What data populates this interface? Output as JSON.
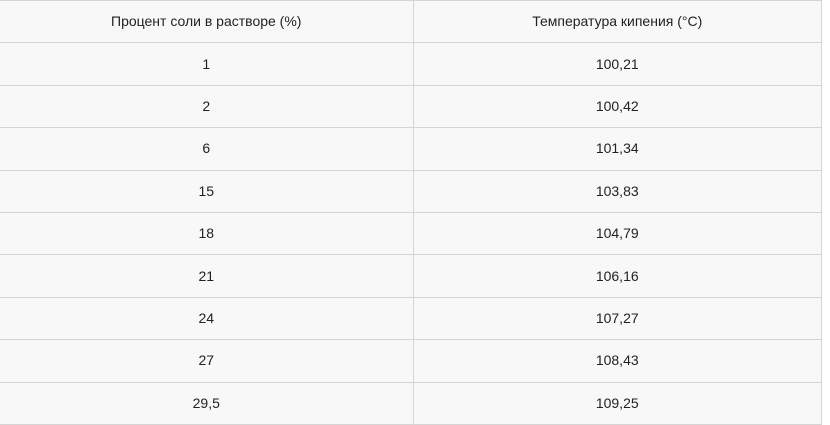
{
  "chart_data": {
    "type": "table",
    "title": "",
    "columns": [
      "Процент соли в растворе (%)",
      "Температура кипения (°C)"
    ],
    "rows": [
      [
        "1",
        "100,21"
      ],
      [
        "2",
        "100,42"
      ],
      [
        "6",
        "101,34"
      ],
      [
        "15",
        "103,83"
      ],
      [
        "18",
        "104,79"
      ],
      [
        "21",
        "106,16"
      ],
      [
        "24",
        "107,27"
      ],
      [
        "27",
        "108,43"
      ],
      [
        "29,5",
        "109,25"
      ]
    ],
    "x_numeric": [
      1,
      2,
      6,
      15,
      18,
      21,
      24,
      27,
      29.5
    ],
    "y_numeric": [
      100.21,
      100.42,
      101.34,
      103.83,
      104.79,
      106.16,
      107.27,
      108.43,
      109.25
    ]
  },
  "colors": {
    "cell_background": "#f8f8f8",
    "border": "#d5d5d5",
    "text": "#222222",
    "page_background": "#ffffff"
  }
}
